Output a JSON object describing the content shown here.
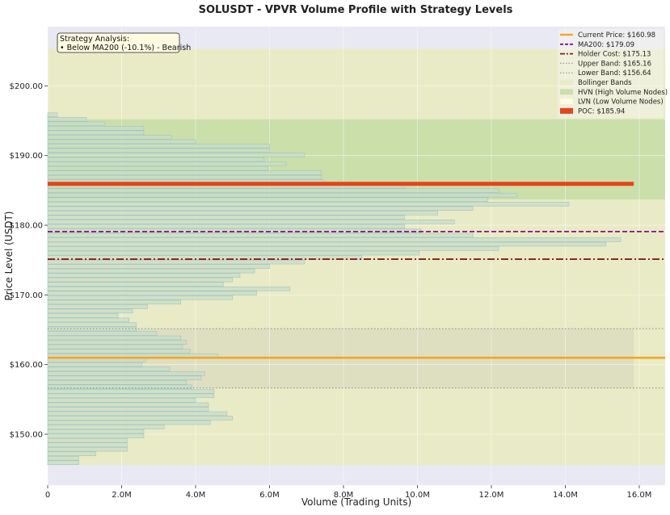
{
  "chart_data": {
    "type": "bar",
    "orientation": "horizontal",
    "title": "SOLUSDT - VPVR Volume Profile with Strategy Levels",
    "xlabel": "Volume (Trading Units)",
    "ylabel": "Price Level (USDT)",
    "xlim": [
      0,
      16700000
    ],
    "ylim": [
      142.7,
      208.5
    ],
    "x_ticks": [
      0,
      2000000,
      4000000,
      6000000,
      8000000,
      10000000,
      12000000,
      14000000,
      16000000
    ],
    "x_tick_labels": [
      "0",
      "2.0M",
      "4.0M",
      "6.0M",
      "8.0M",
      "10.0M",
      "12.0M",
      "14.0M",
      "16.0M"
    ],
    "y_ticks": [
      150,
      160,
      170,
      180,
      190,
      200
    ],
    "y_tick_labels": [
      "$150.00",
      "$160.00",
      "$170.00",
      "$180.00",
      "$190.00",
      "$200.00"
    ],
    "grid": true,
    "legend_position": "top-right",
    "colors": {
      "plot_bg": "#e8e9f2",
      "bar_fill": "#c8dcc6",
      "bar_edge": "#9ec4c4",
      "bollinger": "#e9ebc6",
      "hvn": "#cadfaa",
      "current_price": "#f5a623",
      "ma200": "#8b0f8b",
      "holder": "#8b1a1a",
      "bands": "#8a8a8a",
      "poc": "#e8431a"
    },
    "profile": {
      "price_low": 145.6,
      "bin_height": 0.64,
      "volumes": [
        840000,
        840000,
        1300000,
        2150000,
        2150000,
        2150000,
        2600000,
        2600000,
        3150000,
        4400000,
        5000000,
        4850000,
        4350000,
        4350000,
        4000000,
        4500000,
        4500000,
        3900000,
        3750000,
        4150000,
        4250000,
        3300000,
        2550000,
        2650000,
        4600000,
        3850000,
        3650000,
        3750000,
        3600000,
        2950000,
        2400000,
        2400000,
        2200000,
        1900000,
        2300000,
        2700000,
        3600000,
        5000000,
        5650000,
        6550000,
        4750000,
        5000000,
        5200000,
        5600000,
        6000000,
        6950000,
        8500000,
        10050000,
        12200000,
        15100000,
        15500000,
        11500000,
        10100000,
        9650000,
        11000000,
        9650000,
        10550000,
        11500000,
        14100000,
        11900000,
        12700000,
        12200000,
        9650000,
        7450000,
        7400000,
        7400000,
        5950000,
        6450000,
        5850000,
        6950000,
        6000000,
        6000000,
        4000000,
        3350000,
        2600000,
        2600000,
        1550000,
        1050000,
        260000
      ]
    },
    "levels": {
      "current_price": 160.98,
      "ma200": 179.09,
      "holder_cost": 175.13,
      "upper_band": 165.16,
      "lower_band": 156.64,
      "poc": 185.94
    },
    "bollinger_region": {
      "y_min": 145.6,
      "y_max": 205.3
    },
    "band_region": {
      "y_min": 156.64,
      "y_max": 165.16,
      "x_max": 15850000
    },
    "hvn_region": {
      "y_min": 183.7,
      "y_max": 195.2
    },
    "legend": [
      {
        "key": "current_price",
        "label": "Current Price: $160.98",
        "style": "solid"
      },
      {
        "key": "ma200",
        "label": "MA200: $179.09",
        "style": "dashed"
      },
      {
        "key": "holder",
        "label": "Holder Cost: $175.13",
        "style": "dashdot"
      },
      {
        "key": "bands",
        "label": "Upper Band: $165.16",
        "style": "dotted"
      },
      {
        "key": "bands",
        "label": "Lower Band: $156.64",
        "style": "dotted"
      },
      {
        "key": "bollinger",
        "label": "Bollinger Bands",
        "style": "patch"
      },
      {
        "key": "hvn",
        "label": "HVN (High Volume Nodes)",
        "style": "patch"
      },
      {
        "key": "lvn",
        "label": "LVN (Low Volume Nodes)",
        "style": "patch"
      },
      {
        "key": "poc",
        "label": "POC: $185.94",
        "style": "patch"
      }
    ],
    "annotation": {
      "line1": "Strategy Analysis:",
      "line2": "• Below MA200 (-10.1%) - Bearish"
    }
  }
}
